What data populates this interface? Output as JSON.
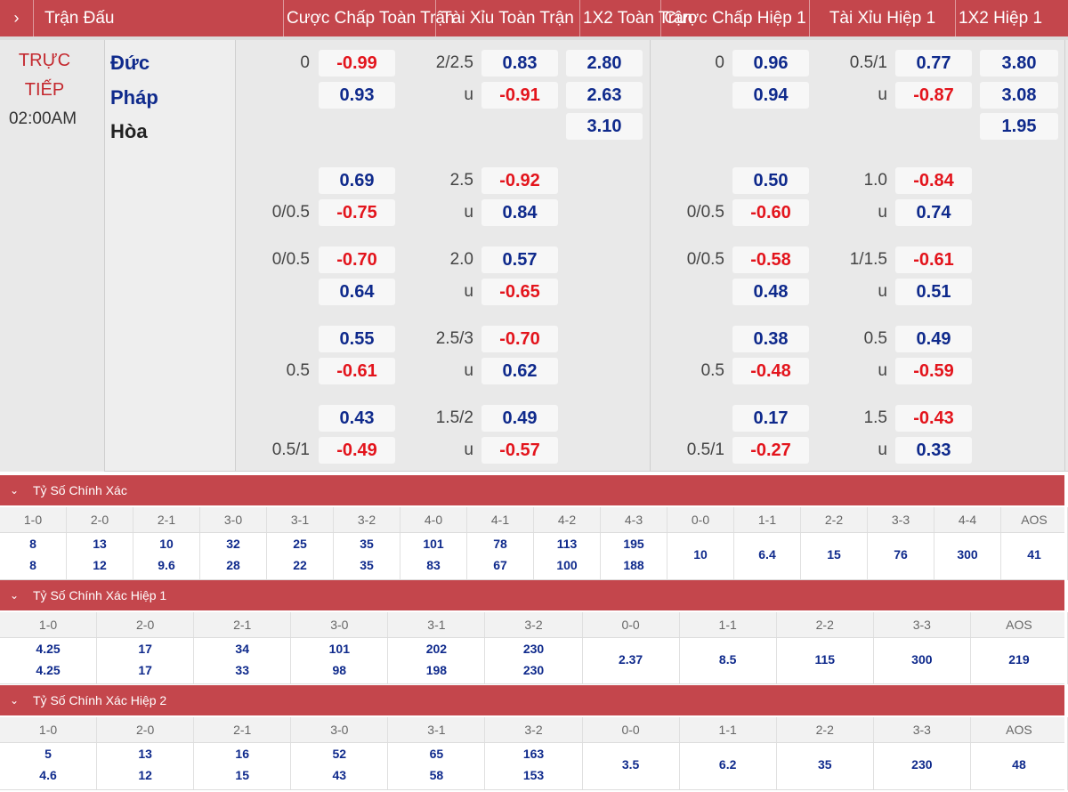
{
  "header": {
    "expand_icon": "chevron-right-icon",
    "columns": [
      "Trận Đấu",
      "Cược Chấp Toàn Trận",
      "Tài Xỉu Toàn Trận",
      "1X2 Toàn Trận",
      "Cược Chấp Hiệp 1",
      "Tài Xỉu Hiệp 1",
      "1X2 Hiệp 1"
    ]
  },
  "match": {
    "status_line1": "TRỰC",
    "status_line2": "TIẾP",
    "time": "02:00AM",
    "home": "Đức",
    "away": "Pháp",
    "draw": "Hòa"
  },
  "colors": {
    "header_bg": "#c4464c",
    "positive": "#0f2a8c",
    "negative": "#e3141c",
    "status": "#c4282e"
  },
  "odds": {
    "main": {
      "ft_hdp": {
        "line": "0",
        "home": "-0.99",
        "away": "0.93"
      },
      "ft_ou": {
        "line": "2/2.5",
        "over": "0.83",
        "under_label": "u",
        "under": "-0.91"
      },
      "ft_1x2": {
        "home": "2.80",
        "away": "2.63",
        "draw": "3.10"
      },
      "h1_hdp": {
        "line": "0",
        "home": "0.96",
        "away": "0.94"
      },
      "h1_ou": {
        "line": "0.5/1",
        "over": "0.77",
        "under_label": "u",
        "under": "-0.87"
      },
      "h1_1x2": {
        "home": "3.80",
        "away": "3.08",
        "draw": "1.95"
      }
    },
    "alt": [
      {
        "ft_hdp_line": "0/0.5",
        "ft_hdp_home": "0.69",
        "ft_hdp_away": "-0.75",
        "ft_ou_line": "2.5",
        "ft_over": "-0.92",
        "ft_under_label": "u",
        "ft_under": "0.84",
        "h1_hdp_line": "0/0.5",
        "h1_hdp_home": "0.50",
        "h1_hdp_away": "-0.60",
        "h1_ou_line": "1.0",
        "h1_over": "-0.84",
        "h1_under_label": "u",
        "h1_under": "0.74"
      },
      {
        "ft_hdp_line": "0/0.5",
        "ft_hdp_home": "-0.70",
        "ft_hdp_away": "0.64",
        "ft_ou_line": "2.0",
        "ft_over": "0.57",
        "ft_under_label": "u",
        "ft_under": "-0.65",
        "h1_hdp_line": "0/0.5",
        "h1_hdp_home": "-0.58",
        "h1_hdp_away": "0.48",
        "h1_ou_line": "1/1.5",
        "h1_over": "-0.61",
        "h1_under_label": "u",
        "h1_under": "0.51"
      },
      {
        "ft_hdp_line": "0.5",
        "ft_hdp_home": "0.55",
        "ft_hdp_away": "-0.61",
        "ft_ou_line": "2.5/3",
        "ft_over": "-0.70",
        "ft_under_label": "u",
        "ft_under": "0.62",
        "h1_hdp_line": "0.5",
        "h1_hdp_home": "0.38",
        "h1_hdp_away": "-0.48",
        "h1_ou_line": "0.5",
        "h1_over": "0.49",
        "h1_under_label": "u",
        "h1_under": "-0.59"
      },
      {
        "ft_hdp_line": "0.5/1",
        "ft_hdp_home": "0.43",
        "ft_hdp_away": "-0.49",
        "ft_ou_line": "1.5/2",
        "ft_over": "0.49",
        "ft_under_label": "u",
        "ft_under": "-0.57",
        "h1_hdp_line": "0.5/1",
        "h1_hdp_home": "0.17",
        "h1_hdp_away": "-0.27",
        "h1_ou_line": "1.5",
        "h1_over": "-0.43",
        "h1_under_label": "u",
        "h1_under": "0.33"
      }
    ]
  },
  "correct_score": {
    "title": "Tỷ Số Chính Xác",
    "toggle_icon": "chevron-down-icon",
    "cells": [
      {
        "k": "1-0",
        "a": "8",
        "b": "8"
      },
      {
        "k": "2-0",
        "a": "13",
        "b": "12"
      },
      {
        "k": "2-1",
        "a": "10",
        "b": "9.6"
      },
      {
        "k": "3-0",
        "a": "32",
        "b": "28"
      },
      {
        "k": "3-1",
        "a": "25",
        "b": "22"
      },
      {
        "k": "3-2",
        "a": "35",
        "b": "35"
      },
      {
        "k": "4-0",
        "a": "101",
        "b": "83"
      },
      {
        "k": "4-1",
        "a": "78",
        "b": "67"
      },
      {
        "k": "4-2",
        "a": "113",
        "b": "100"
      },
      {
        "k": "4-3",
        "a": "195",
        "b": "188"
      },
      {
        "k": "0-0",
        "v": "10"
      },
      {
        "k": "1-1",
        "v": "6.4"
      },
      {
        "k": "2-2",
        "v": "15"
      },
      {
        "k": "3-3",
        "v": "76"
      },
      {
        "k": "4-4",
        "v": "300"
      },
      {
        "k": "AOS",
        "v": "41"
      }
    ]
  },
  "correct_score_h1": {
    "title": "Tỷ Số Chính Xác Hiệp 1",
    "toggle_icon": "chevron-down-icon",
    "cells": [
      {
        "k": "1-0",
        "a": "4.25",
        "b": "4.25"
      },
      {
        "k": "2-0",
        "a": "17",
        "b": "17"
      },
      {
        "k": "2-1",
        "a": "34",
        "b": "33"
      },
      {
        "k": "3-0",
        "a": "101",
        "b": "98"
      },
      {
        "k": "3-1",
        "a": "202",
        "b": "198"
      },
      {
        "k": "3-2",
        "a": "230",
        "b": "230"
      },
      {
        "k": "0-0",
        "v": "2.37"
      },
      {
        "k": "1-1",
        "v": "8.5"
      },
      {
        "k": "2-2",
        "v": "115"
      },
      {
        "k": "3-3",
        "v": "300"
      },
      {
        "k": "AOS",
        "v": "219"
      }
    ]
  },
  "correct_score_h2": {
    "title": "Tỷ Số Chính Xác Hiệp 2",
    "toggle_icon": "chevron-down-icon",
    "cells": [
      {
        "k": "1-0",
        "a": "5",
        "b": "4.6"
      },
      {
        "k": "2-0",
        "a": "13",
        "b": "12"
      },
      {
        "k": "2-1",
        "a": "16",
        "b": "15"
      },
      {
        "k": "3-0",
        "a": "52",
        "b": "43"
      },
      {
        "k": "3-1",
        "a": "65",
        "b": "58"
      },
      {
        "k": "3-2",
        "a": "163",
        "b": "153"
      },
      {
        "k": "0-0",
        "v": "3.5"
      },
      {
        "k": "1-1",
        "v": "6.2"
      },
      {
        "k": "2-2",
        "v": "35"
      },
      {
        "k": "3-3",
        "v": "230"
      },
      {
        "k": "AOS",
        "v": "48"
      }
    ]
  }
}
